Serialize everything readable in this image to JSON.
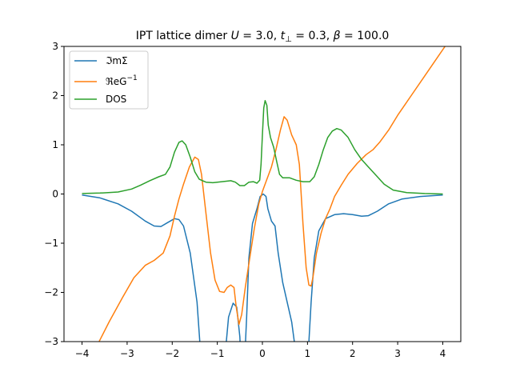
{
  "chart_data": {
    "type": "line",
    "title": "IPT lattice dimer U = 3.0, t⊥ = 0.3, β = 100.0",
    "title_parts": {
      "prefix": "IPT lattice dimer ",
      "u_var": "U",
      "u_val": " = 3.0, ",
      "t_var": "t",
      "t_sub": "⊥",
      "t_val": " = 0.3, ",
      "b_var": "β",
      "b_val": " = 100.0"
    },
    "xlabel": "",
    "ylabel": "",
    "xlim": [
      -4.4,
      4.4
    ],
    "ylim": [
      -3,
      3
    ],
    "xticks": [
      "−4",
      "−3",
      "−2",
      "−1",
      "0",
      "1",
      "2",
      "3",
      "4"
    ],
    "xtick_values": [
      -4,
      -3,
      -2,
      -1,
      0,
      1,
      2,
      3,
      4
    ],
    "yticks": [
      "−3",
      "−2",
      "−1",
      "0",
      "1",
      "2",
      "3"
    ],
    "ytick_values": [
      -3,
      -2,
      -1,
      0,
      1,
      2,
      3
    ],
    "grid": false,
    "legend_position": "top-left",
    "series": [
      {
        "name": "ℑmΣ",
        "color": "#1f77b4",
        "points": [
          [
            -4.0,
            -0.02
          ],
          [
            -3.6,
            -0.08
          ],
          [
            -3.2,
            -0.2
          ],
          [
            -2.9,
            -0.35
          ],
          [
            -2.6,
            -0.55
          ],
          [
            -2.4,
            -0.65
          ],
          [
            -2.25,
            -0.66
          ],
          [
            -2.1,
            -0.58
          ],
          [
            -1.95,
            -0.5
          ],
          [
            -1.85,
            -0.52
          ],
          [
            -1.75,
            -0.65
          ],
          [
            -1.6,
            -1.2
          ],
          [
            -1.45,
            -2.2
          ],
          [
            -1.35,
            -3.5
          ],
          null,
          [
            -0.85,
            -3.5
          ],
          [
            -0.75,
            -2.5
          ],
          [
            -0.65,
            -2.22
          ],
          [
            -0.57,
            -2.3
          ],
          [
            -0.5,
            -2.9
          ],
          [
            -0.47,
            -3.5
          ],
          null,
          [
            -0.4,
            -3.5
          ],
          [
            -0.35,
            -2.5
          ],
          [
            -0.3,
            -1.3
          ],
          [
            -0.22,
            -0.6
          ],
          [
            -0.12,
            -0.3
          ],
          [
            -0.05,
            -0.05
          ],
          [
            0.02,
            0.0
          ],
          [
            0.08,
            -0.05
          ],
          [
            0.12,
            -0.3
          ],
          [
            0.2,
            -0.55
          ],
          [
            0.28,
            -0.65
          ],
          [
            0.35,
            -1.2
          ],
          [
            0.45,
            -1.8
          ],
          [
            0.55,
            -2.2
          ],
          [
            0.65,
            -2.6
          ],
          [
            0.78,
            -3.5
          ],
          null,
          [
            1.0,
            -3.5
          ],
          [
            1.08,
            -2.2
          ],
          [
            1.15,
            -1.3
          ],
          [
            1.25,
            -0.75
          ],
          [
            1.4,
            -0.5
          ],
          [
            1.6,
            -0.42
          ],
          [
            1.8,
            -0.4
          ],
          [
            2.0,
            -0.42
          ],
          [
            2.2,
            -0.45
          ],
          [
            2.35,
            -0.44
          ],
          [
            2.55,
            -0.35
          ],
          [
            2.8,
            -0.2
          ],
          [
            3.1,
            -0.1
          ],
          [
            3.5,
            -0.05
          ],
          [
            4.0,
            -0.02
          ]
        ]
      },
      {
        "name": "ℜeG⁻¹",
        "color": "#ff7f0e",
        "points": [
          [
            -3.65,
            -3.05
          ],
          [
            -3.4,
            -2.6
          ],
          [
            -3.1,
            -2.1
          ],
          [
            -2.85,
            -1.7
          ],
          [
            -2.6,
            -1.45
          ],
          [
            -2.4,
            -1.35
          ],
          [
            -2.2,
            -1.2
          ],
          [
            -2.05,
            -0.85
          ],
          [
            -1.95,
            -0.45
          ],
          [
            -1.85,
            -0.1
          ],
          [
            -1.75,
            0.2
          ],
          [
            -1.62,
            0.55
          ],
          [
            -1.5,
            0.75
          ],
          [
            -1.42,
            0.7
          ],
          [
            -1.35,
            0.4
          ],
          [
            -1.25,
            -0.4
          ],
          [
            -1.15,
            -1.2
          ],
          [
            -1.05,
            -1.75
          ],
          [
            -0.95,
            -1.98
          ],
          [
            -0.85,
            -2.0
          ],
          [
            -0.78,
            -1.9
          ],
          [
            -0.7,
            -1.85
          ],
          [
            -0.63,
            -1.9
          ],
          [
            -0.58,
            -2.3
          ],
          [
            -0.52,
            -2.65
          ],
          [
            -0.46,
            -2.45
          ],
          [
            -0.38,
            -1.9
          ],
          [
            -0.28,
            -1.3
          ],
          [
            -0.18,
            -0.7
          ],
          [
            -0.08,
            -0.2
          ],
          [
            0.0,
            0.05
          ],
          [
            0.1,
            0.3
          ],
          [
            0.2,
            0.55
          ],
          [
            0.3,
            0.9
          ],
          [
            0.4,
            1.3
          ],
          [
            0.48,
            1.57
          ],
          [
            0.55,
            1.5
          ],
          [
            0.65,
            1.2
          ],
          [
            0.75,
            1.0
          ],
          [
            0.82,
            0.6
          ],
          [
            0.9,
            -0.6
          ],
          [
            0.97,
            -1.5
          ],
          [
            1.03,
            -1.85
          ],
          [
            1.08,
            -1.87
          ],
          [
            1.12,
            -1.7
          ],
          [
            1.2,
            -1.2
          ],
          [
            1.3,
            -0.8
          ],
          [
            1.4,
            -0.5
          ],
          [
            1.5,
            -0.3
          ],
          [
            1.6,
            -0.05
          ],
          [
            1.75,
            0.18
          ],
          [
            1.9,
            0.4
          ],
          [
            2.1,
            0.62
          ],
          [
            2.3,
            0.8
          ],
          [
            2.45,
            0.9
          ],
          [
            2.6,
            1.05
          ],
          [
            2.8,
            1.3
          ],
          [
            3.0,
            1.6
          ],
          [
            3.3,
            2.0
          ],
          [
            3.6,
            2.4
          ],
          [
            3.9,
            2.8
          ],
          [
            4.05,
            3.0
          ]
        ]
      },
      {
        "name": "DOS",
        "color": "#2ca02c",
        "points": [
          [
            -4.0,
            0.01
          ],
          [
            -3.6,
            0.02
          ],
          [
            -3.2,
            0.04
          ],
          [
            -2.9,
            0.1
          ],
          [
            -2.7,
            0.18
          ],
          [
            -2.5,
            0.27
          ],
          [
            -2.3,
            0.35
          ],
          [
            -2.15,
            0.4
          ],
          [
            -2.05,
            0.55
          ],
          [
            -1.95,
            0.85
          ],
          [
            -1.85,
            1.05
          ],
          [
            -1.78,
            1.08
          ],
          [
            -1.7,
            1.0
          ],
          [
            -1.6,
            0.75
          ],
          [
            -1.5,
            0.45
          ],
          [
            -1.4,
            0.3
          ],
          [
            -1.25,
            0.24
          ],
          [
            -1.1,
            0.23
          ],
          [
            -0.9,
            0.25
          ],
          [
            -0.7,
            0.27
          ],
          [
            -0.6,
            0.24
          ],
          [
            -0.5,
            0.17
          ],
          [
            -0.4,
            0.17
          ],
          [
            -0.3,
            0.24
          ],
          [
            -0.2,
            0.25
          ],
          [
            -0.12,
            0.22
          ],
          [
            -0.06,
            0.28
          ],
          [
            -0.03,
            0.6
          ],
          [
            0.0,
            1.2
          ],
          [
            0.03,
            1.75
          ],
          [
            0.06,
            1.9
          ],
          [
            0.1,
            1.8
          ],
          [
            0.13,
            1.4
          ],
          [
            0.18,
            1.15
          ],
          [
            0.25,
            0.95
          ],
          [
            0.32,
            0.65
          ],
          [
            0.38,
            0.4
          ],
          [
            0.45,
            0.33
          ],
          [
            0.6,
            0.33
          ],
          [
            0.75,
            0.28
          ],
          [
            0.9,
            0.25
          ],
          [
            1.05,
            0.25
          ],
          [
            1.15,
            0.35
          ],
          [
            1.25,
            0.6
          ],
          [
            1.35,
            0.9
          ],
          [
            1.45,
            1.15
          ],
          [
            1.55,
            1.28
          ],
          [
            1.65,
            1.33
          ],
          [
            1.75,
            1.3
          ],
          [
            1.9,
            1.15
          ],
          [
            2.05,
            0.9
          ],
          [
            2.2,
            0.7
          ],
          [
            2.35,
            0.55
          ],
          [
            2.5,
            0.4
          ],
          [
            2.7,
            0.2
          ],
          [
            2.9,
            0.08
          ],
          [
            3.2,
            0.03
          ],
          [
            3.6,
            0.01
          ],
          [
            4.0,
            0.0
          ]
        ]
      }
    ],
    "legend": {
      "items": [
        {
          "label_main": "ℑmΣ",
          "label_sup": ""
        },
        {
          "label_main": "ℜeG",
          "label_sup": "−1"
        },
        {
          "label_main": "DOS",
          "label_sup": ""
        }
      ]
    }
  }
}
